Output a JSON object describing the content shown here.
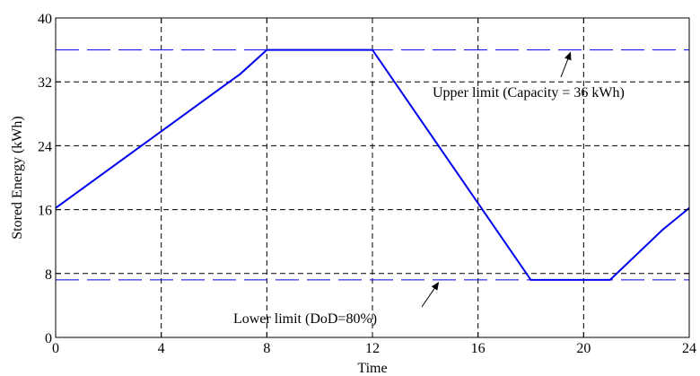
{
  "chart_data": {
    "type": "line",
    "xlabel": "Time",
    "ylabel": "Stored Energy (kWh)",
    "xlim": [
      0,
      24
    ],
    "ylim": [
      0,
      40
    ],
    "xticks": [
      0,
      4,
      8,
      12,
      16,
      20,
      24
    ],
    "yticks": [
      0,
      8,
      16,
      24,
      32,
      40
    ],
    "grid": true,
    "series": [
      {
        "values": [
          {
            "x": 0,
            "y": 16.2
          },
          {
            "x": 7,
            "y": 33
          },
          {
            "x": 8,
            "y": 36
          },
          {
            "x": 12,
            "y": 36
          },
          {
            "x": 18,
            "y": 7.2
          },
          {
            "x": 21,
            "y": 7.2
          },
          {
            "x": 23,
            "y": 13.5
          },
          {
            "x": 24,
            "y": 16.2
          }
        ],
        "color": "#0000ee"
      }
    ],
    "reference_lines": [
      {
        "y": 36,
        "style": "dashed",
        "color": "#0000ee"
      },
      {
        "y": 7.2,
        "style": "dashed",
        "color": "#0000ee"
      }
    ],
    "annotations": [
      {
        "text": "Upper limit (Capacity = 36 kWh)",
        "arrow_to": {
          "x": 19.5,
          "y": 36
        }
      },
      {
        "text": "Lower limit (DoD=80%)",
        "arrow_to": {
          "x": 14.5,
          "y": 7.2
        }
      }
    ]
  }
}
